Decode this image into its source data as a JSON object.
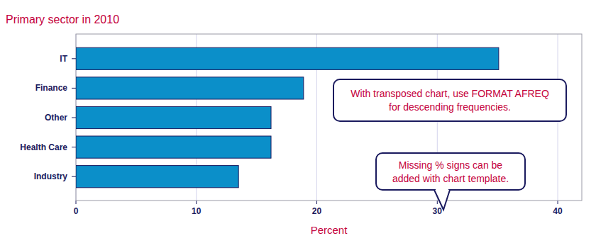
{
  "chart_data": {
    "type": "bar",
    "orientation": "horizontal",
    "title": "Primary sector in 2010",
    "categories": [
      "IT",
      "Finance",
      "Other",
      "Health Care",
      "Industry"
    ],
    "values": [
      35.1,
      18.9,
      16.2,
      16.2,
      13.5
    ],
    "color": "#0b8fc9",
    "x_label": "Percent",
    "xlim": [
      0,
      42
    ],
    "xticks": [
      0,
      10,
      20,
      30,
      40
    ],
    "grid": true,
    "annotations": [
      [
        "With transposed chart, use FORMAT AFREQ",
        "for descending frequencies."
      ],
      [
        "Missing % signs can be",
        "added with chart template."
      ]
    ]
  }
}
